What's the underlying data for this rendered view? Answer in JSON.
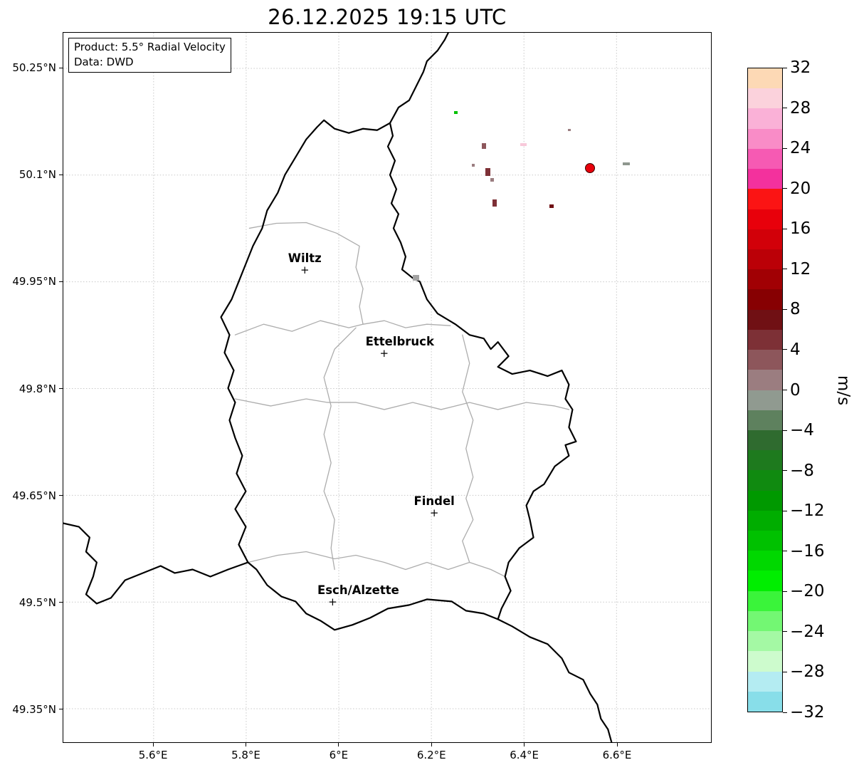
{
  "title": "26.12.2025 19:15 UTC",
  "info_box": {
    "line1": "Product: 5.5° Radial Velocity",
    "line2": "Data: DWD"
  },
  "chart_data": {
    "type": "heatmap",
    "title": "26.12.2025 19:15 UTC",
    "product": "5.5° Radial Velocity",
    "source": "DWD",
    "units": "m/s",
    "region": "Luxembourg and surroundings",
    "grid": true,
    "x_axis": {
      "range": [
        5.405,
        6.804
      ],
      "ticks": [
        {
          "label": "5.6°E",
          "value": 5.6
        },
        {
          "label": "5.8°E",
          "value": 5.8
        },
        {
          "label": "6°E",
          "value": 6.0
        },
        {
          "label": "6.2°E",
          "value": 6.2
        },
        {
          "label": "6.4°E",
          "value": 6.4
        },
        {
          "label": "6.6°E",
          "value": 6.6
        }
      ]
    },
    "y_axis": {
      "range": [
        49.303,
        50.3
      ],
      "ticks": [
        {
          "label": "50.25°N",
          "value": 50.25
        },
        {
          "label": "50.1°N",
          "value": 50.1
        },
        {
          "label": "49.95°N",
          "value": 49.95
        },
        {
          "label": "49.8°N",
          "value": 49.8
        },
        {
          "label": "49.65°N",
          "value": 49.65
        },
        {
          "label": "49.5°N",
          "value": 49.5
        },
        {
          "label": "49.35°N",
          "value": 49.35
        }
      ]
    },
    "colorbar": {
      "label": "m/s",
      "vmin": -32,
      "vmax": 32,
      "band_size": 2,
      "tick_labels": [
        "32",
        "28",
        "24",
        "20",
        "16",
        "12",
        "8",
        "4",
        "0",
        "−4",
        "−8",
        "−12",
        "−16",
        "−20",
        "−24",
        "−28",
        "−32"
      ],
      "tick_values": [
        32,
        28,
        24,
        20,
        16,
        12,
        8,
        4,
        0,
        -4,
        -8,
        -12,
        -16,
        -20,
        -24,
        -28,
        -32
      ],
      "colors_top_to_bottom": [
        "#fdd9b5",
        "#fbd2dc",
        "#fab1d7",
        "#f98cc7",
        "#f65ab3",
        "#f3319d",
        "#fb1414",
        "#e8000b",
        "#d20009",
        "#bb0007",
        "#a10004",
        "#870002",
        "#701014",
        "#7d3036",
        "#8d565b",
        "#9b7d80",
        "#909a90",
        "#5e815e",
        "#2f6b2f",
        "#1e7a1e",
        "#108a10",
        "#009900",
        "#00ad00",
        "#00c100",
        "#00d800",
        "#00ee00",
        "#3af43a",
        "#73f773",
        "#a4f9a4",
        "#cdfbcd",
        "#b4ecf2",
        "#88dee9"
      ]
    },
    "cities": [
      {
        "name": "Wiltz",
        "lon": 5.927,
        "lat": 49.965,
        "label_dx": 0
      },
      {
        "name": "Ettelbruck",
        "lon": 6.098,
        "lat": 49.848,
        "label_dx": 22
      },
      {
        "name": "Findel",
        "lon": 6.206,
        "lat": 49.625,
        "label_dx": 0
      },
      {
        "name": "Esch/Alzette",
        "lon": 5.987,
        "lat": 49.5,
        "label_dx": 36
      }
    ],
    "radar_site_marker": {
      "lon": 6.542,
      "lat": 50.109,
      "fill": "#e8000b",
      "edge": "#3a0000"
    },
    "echoes": [
      {
        "lon": 6.252,
        "lat": 50.187,
        "color": "#00c100",
        "w": 5,
        "h": 4
      },
      {
        "lon": 6.313,
        "lat": 50.14,
        "color": "#8d565b",
        "w": 6,
        "h": 8
      },
      {
        "lon": 6.398,
        "lat": 50.142,
        "color": "#f8c9da",
        "w": 9,
        "h": 4
      },
      {
        "lon": 6.29,
        "lat": 50.113,
        "color": "#9b7d80",
        "w": 4,
        "h": 4
      },
      {
        "lon": 6.321,
        "lat": 50.104,
        "color": "#7d3036",
        "w": 7,
        "h": 11
      },
      {
        "lon": 6.33,
        "lat": 50.093,
        "color": "#9b7d80",
        "w": 5,
        "h": 5
      },
      {
        "lon": 6.336,
        "lat": 50.06,
        "color": "#7d3036",
        "w": 6,
        "h": 10
      },
      {
        "lon": 6.459,
        "lat": 50.056,
        "color": "#701014",
        "w": 6,
        "h": 5
      },
      {
        "lon": 6.497,
        "lat": 50.163,
        "color": "#9b7d80",
        "w": 4,
        "h": 3
      },
      {
        "lon": 6.62,
        "lat": 50.115,
        "color": "#8e978e",
        "w": 10,
        "h": 4
      },
      {
        "lon": 6.167,
        "lat": 49.955,
        "color": "#a3a3a3",
        "w": 9,
        "h": 8
      }
    ]
  }
}
